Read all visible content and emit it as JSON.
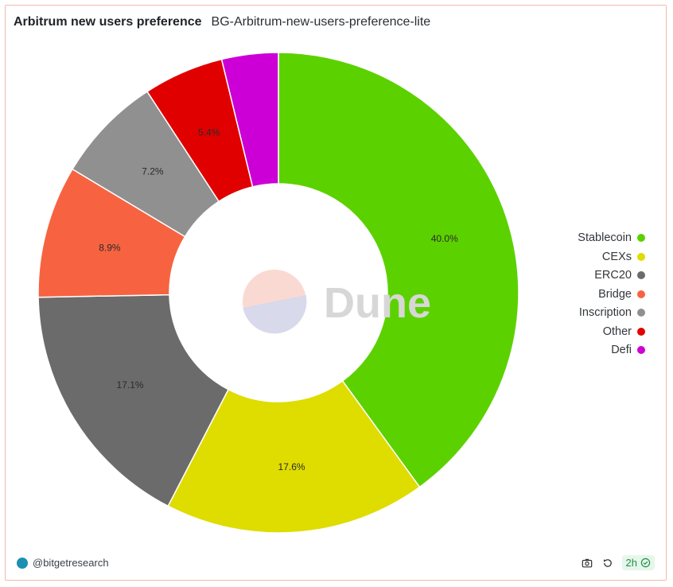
{
  "header": {
    "title": "Arbitrum new users preference",
    "subtitle": "BG-Arbitrum-new-users-preference-lite"
  },
  "watermark": {
    "text": "Dune"
  },
  "footer": {
    "author": "@bitgetresearch",
    "freshness": "2h"
  },
  "chart_data": {
    "type": "pie",
    "donut": true,
    "title": "Arbitrum new users preference",
    "legend_position": "right",
    "categories": [
      "Stablecoin",
      "CEXs",
      "ERC20",
      "Bridge",
      "Inscription",
      "Other",
      "Defi"
    ],
    "values": [
      40.0,
      17.6,
      17.1,
      8.9,
      7.2,
      5.4,
      3.8
    ],
    "labels": [
      "40.0%",
      "17.6%",
      "17.1%",
      "8.9%",
      "7.2%",
      "5.4%",
      ""
    ],
    "colors": [
      "#5cd100",
      "#dfdc00",
      "#6b6b6b",
      "#f76341",
      "#909090",
      "#e00000",
      "#cc00d6"
    ]
  }
}
